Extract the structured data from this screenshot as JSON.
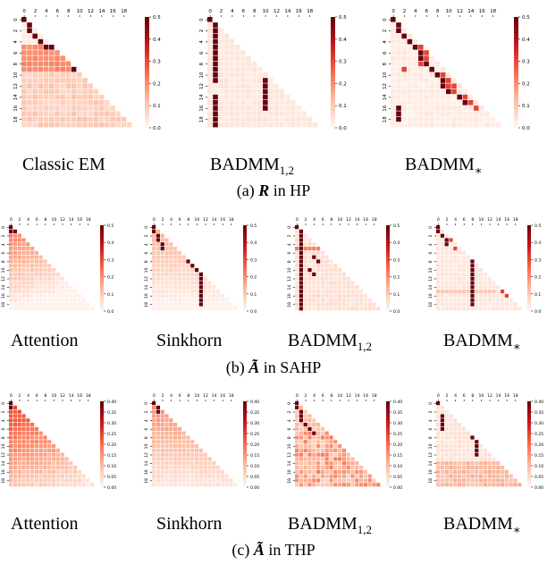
{
  "figure": {
    "groups": [
      {
        "caption_prefix": "(a)",
        "caption_symbol": "R",
        "caption_suffix": "in HP",
        "labels": [
          {
            "main": "Classic EM",
            "sub": ""
          },
          {
            "main": "BADMM",
            "sub": "1,2"
          },
          {
            "main": "BADMM",
            "sub": "*"
          }
        ]
      },
      {
        "caption_prefix": "(b)",
        "caption_symbol": "Ã",
        "caption_suffix": "in SAHP",
        "labels": [
          {
            "main": "Attention",
            "sub": ""
          },
          {
            "main": "Sinkhorn",
            "sub": ""
          },
          {
            "main": "BADMM",
            "sub": "1,2"
          },
          {
            "main": "BADMM",
            "sub": "*"
          }
        ]
      },
      {
        "caption_prefix": "(c)",
        "caption_symbol": "Ã",
        "caption_suffix": "in THP",
        "labels": [
          {
            "main": "Attention",
            "sub": ""
          },
          {
            "main": "Sinkhorn",
            "sub": ""
          },
          {
            "main": "BADMM",
            "sub": "1,2"
          },
          {
            "main": "BADMM",
            "sub": "*"
          }
        ]
      }
    ]
  },
  "chart_data": [
    {
      "type": "heatmap",
      "panel": "Classic EM",
      "group": "(a)",
      "size": 20,
      "x_ticks": [
        "0",
        "2",
        "4",
        "6",
        "8",
        "10",
        "12",
        "14",
        "16",
        "18"
      ],
      "y_ticks": [
        "0",
        "2",
        "4",
        "6",
        "8",
        "10",
        "12",
        "14",
        "16",
        "18"
      ],
      "colorbar": {
        "min": 0,
        "max": 0.5,
        "ticks": [
          "0.0",
          "0.1",
          "0.2",
          "0.3",
          "0.4",
          "0.5"
        ]
      },
      "colormap": [
        "#fff5f0",
        "#fcbba1",
        "#fb6a4a",
        "#cb181d",
        "#67000d"
      ],
      "pattern": "em",
      "strong": [
        [
          0,
          0
        ],
        [
          1,
          1
        ],
        [
          2,
          1
        ],
        [
          3,
          2
        ],
        [
          4,
          3
        ],
        [
          5,
          4
        ],
        [
          5,
          5
        ],
        [
          9,
          9
        ]
      ]
    },
    {
      "type": "heatmap",
      "panel": "BADMM 1,2",
      "group": "(a)",
      "size": 20,
      "x_ticks": [
        "0",
        "2",
        "4",
        "6",
        "8",
        "10",
        "12",
        "14",
        "16",
        "18"
      ],
      "y_ticks": [
        "0",
        "2",
        "4",
        "6",
        "8",
        "10",
        "12",
        "14",
        "16",
        "18"
      ],
      "colorbar": {
        "min": 0,
        "max": 0.5,
        "ticks": [
          "0.0",
          "0.1",
          "0.2",
          "0.3",
          "0.4",
          "0.5"
        ]
      },
      "colormap": [
        "#fff5f0",
        "#fcbba1",
        "#fb6a4a",
        "#cb181d",
        "#67000d"
      ],
      "pattern": "columns",
      "strong": [
        [
          0,
          0
        ],
        [
          1,
          1
        ],
        [
          2,
          1
        ],
        [
          3,
          1
        ],
        [
          4,
          1
        ],
        [
          5,
          1
        ],
        [
          6,
          1
        ],
        [
          7,
          1
        ],
        [
          8,
          1
        ],
        [
          9,
          1
        ],
        [
          10,
          1
        ],
        [
          11,
          1
        ],
        [
          12,
          1
        ],
        [
          13,
          1
        ],
        [
          14,
          1
        ],
        [
          15,
          1
        ],
        [
          16,
          1
        ],
        [
          17,
          1
        ],
        [
          18,
          1
        ],
        [
          19,
          1
        ],
        [
          11,
          10
        ],
        [
          12,
          10
        ],
        [
          13,
          10
        ],
        [
          14,
          10
        ],
        [
          15,
          10
        ],
        [
          16,
          10
        ]
      ],
      "gaps": [
        [
          12,
          1
        ],
        [
          13,
          1
        ]
      ]
    },
    {
      "type": "heatmap",
      "panel": "BADMM *",
      "group": "(a)",
      "size": 20,
      "x_ticks": [
        "0",
        "2",
        "4",
        "6",
        "8",
        "10",
        "12",
        "14",
        "16",
        "18"
      ],
      "y_ticks": [
        "0",
        "2",
        "4",
        "6",
        "8",
        "10",
        "12",
        "14",
        "16",
        "18"
      ],
      "colorbar": {
        "min": 0,
        "max": 0.5,
        "ticks": [
          "0.0",
          "0.1",
          "0.2",
          "0.3",
          "0.4",
          "0.5"
        ]
      },
      "colormap": [
        "#fff5f0",
        "#fcbba1",
        "#fb6a4a",
        "#cb181d",
        "#67000d"
      ],
      "pattern": "blocks",
      "strong": [
        [
          0,
          0
        ],
        [
          1,
          1
        ],
        [
          2,
          1
        ],
        [
          3,
          2
        ],
        [
          4,
          3
        ],
        [
          5,
          4
        ],
        [
          6,
          5
        ],
        [
          7,
          5
        ],
        [
          8,
          6
        ],
        [
          9,
          7
        ],
        [
          10,
          8
        ],
        [
          11,
          9
        ],
        [
          12,
          9
        ],
        [
          13,
          10
        ],
        [
          14,
          12
        ],
        [
          15,
          13
        ],
        [
          16,
          1
        ],
        [
          17,
          1
        ],
        [
          18,
          1
        ]
      ],
      "medium": [
        [
          5,
          5
        ],
        [
          6,
          6
        ],
        [
          7,
          6
        ],
        [
          8,
          5
        ],
        [
          9,
          2
        ],
        [
          10,
          9
        ],
        [
          11,
          10
        ],
        [
          12,
          10
        ],
        [
          12,
          11
        ],
        [
          13,
          11
        ],
        [
          14,
          13
        ],
        [
          15,
          14
        ],
        [
          16,
          15
        ]
      ]
    },
    {
      "type": "heatmap",
      "panel": "Attention",
      "group": "(b)",
      "size": 20,
      "x_ticks": [
        "0",
        "2",
        "4",
        "6",
        "8",
        "10",
        "12",
        "14",
        "16",
        "18"
      ],
      "y_ticks": [
        "0",
        "2",
        "4",
        "6",
        "8",
        "10",
        "12",
        "14",
        "16",
        "18"
      ],
      "colorbar": {
        "min": 0,
        "max": 0.5,
        "ticks": [
          "0.0",
          "0.1",
          "0.2",
          "0.3",
          "0.4",
          "0.5"
        ]
      },
      "colormap": [
        "#fff5f0",
        "#fcbba1",
        "#fb6a4a",
        "#cb181d",
        "#67000d"
      ],
      "pattern": "attention",
      "strong": [
        [
          0,
          0
        ],
        [
          1,
          0
        ],
        [
          1,
          1
        ]
      ]
    },
    {
      "type": "heatmap",
      "panel": "Sinkhorn",
      "group": "(b)",
      "size": 20,
      "x_ticks": [
        "0",
        "2",
        "4",
        "6",
        "8",
        "10",
        "12",
        "14",
        "16",
        "18"
      ],
      "y_ticks": [
        "0",
        "2",
        "4",
        "6",
        "8",
        "10",
        "12",
        "14",
        "16",
        "18"
      ],
      "colorbar": {
        "min": 0,
        "max": 0.5,
        "ticks": [
          "0.0",
          "0.1",
          "0.2",
          "0.3",
          "0.4",
          "0.5"
        ]
      },
      "colormap": [
        "#fff5f0",
        "#fcbba1",
        "#fb6a4a",
        "#cb181d",
        "#67000d"
      ],
      "pattern": "sinkhorn",
      "strong": [
        [
          0,
          0
        ],
        [
          1,
          0
        ],
        [
          2,
          1
        ],
        [
          3,
          1
        ],
        [
          4,
          2
        ],
        [
          5,
          2
        ],
        [
          8,
          8
        ],
        [
          9,
          9
        ],
        [
          10,
          10
        ],
        [
          11,
          11
        ],
        [
          12,
          11
        ],
        [
          13,
          11
        ],
        [
          14,
          11
        ],
        [
          15,
          11
        ],
        [
          16,
          11
        ],
        [
          17,
          11
        ],
        [
          18,
          11
        ]
      ]
    },
    {
      "type": "heatmap",
      "panel": "BADMM 1,2",
      "group": "(b)",
      "size": 20,
      "x_ticks": [
        "0",
        "2",
        "4",
        "6",
        "8",
        "10",
        "12",
        "14",
        "16",
        "18"
      ],
      "y_ticks": [
        "0",
        "2",
        "4",
        "6",
        "8",
        "10",
        "12",
        "14",
        "16",
        "18"
      ],
      "colorbar": {
        "min": 0,
        "max": 0.5,
        "ticks": [
          "0.0",
          "0.1",
          "0.2",
          "0.3",
          "0.4",
          "0.5"
        ]
      },
      "colormap": [
        "#fff5f0",
        "#fcbba1",
        "#fb6a4a",
        "#cb181d",
        "#67000d"
      ],
      "pattern": "badmm12b",
      "strong": [
        [
          0,
          0
        ],
        [
          1,
          1
        ],
        [
          2,
          1
        ],
        [
          3,
          1
        ],
        [
          4,
          1
        ],
        [
          5,
          1
        ],
        [
          6,
          1
        ],
        [
          7,
          1
        ],
        [
          8,
          1
        ],
        [
          9,
          1
        ],
        [
          10,
          1
        ],
        [
          11,
          1
        ],
        [
          12,
          1
        ],
        [
          13,
          1
        ],
        [
          14,
          1
        ],
        [
          15,
          1
        ],
        [
          16,
          1
        ],
        [
          17,
          1
        ],
        [
          18,
          1
        ],
        [
          19,
          1
        ],
        [
          7,
          4
        ],
        [
          8,
          5
        ],
        [
          10,
          3
        ],
        [
          11,
          4
        ]
      ]
    },
    {
      "type": "heatmap",
      "panel": "BADMM *",
      "group": "(b)",
      "size": 20,
      "x_ticks": [
        "0",
        "2",
        "4",
        "6",
        "8",
        "10",
        "12",
        "14",
        "16",
        "18"
      ],
      "y_ticks": [
        "0",
        "2",
        "4",
        "6",
        "8",
        "10",
        "12",
        "14",
        "16",
        "18"
      ],
      "colorbar": {
        "min": 0,
        "max": 0.5,
        "ticks": [
          "0.0",
          "0.1",
          "0.2",
          "0.3",
          "0.4",
          "0.5"
        ]
      },
      "colormap": [
        "#fff5f0",
        "#fcbba1",
        "#fb6a4a",
        "#cb181d",
        "#67000d"
      ],
      "pattern": "badmmsb",
      "strong": [
        [
          0,
          0
        ],
        [
          1,
          0
        ],
        [
          2,
          1
        ],
        [
          3,
          2
        ],
        [
          4,
          2
        ],
        [
          8,
          8
        ],
        [
          9,
          8
        ],
        [
          10,
          8
        ],
        [
          11,
          8
        ],
        [
          12,
          8
        ],
        [
          13,
          8
        ],
        [
          14,
          8
        ],
        [
          15,
          8
        ],
        [
          16,
          8
        ],
        [
          17,
          8
        ],
        [
          18,
          8
        ]
      ],
      "medium": [
        [
          3,
          3
        ],
        [
          3,
          4
        ],
        [
          5,
          4
        ],
        [
          15,
          15
        ],
        [
          16,
          16
        ]
      ]
    },
    {
      "type": "heatmap",
      "panel": "Attention",
      "group": "(c)",
      "size": 20,
      "x_ticks": [
        "0",
        "2",
        "4",
        "6",
        "8",
        "10",
        "12",
        "14",
        "16",
        "18"
      ],
      "y_ticks": [
        "0",
        "2",
        "4",
        "6",
        "8",
        "10",
        "12",
        "14",
        "16",
        "18"
      ],
      "colorbar": {
        "min": 0,
        "max": 0.4,
        "ticks": [
          "0.00",
          "0.05",
          "0.10",
          "0.15",
          "0.20",
          "0.25",
          "0.30",
          "0.35",
          "0.40"
        ]
      },
      "colormap": [
        "#fff5f0",
        "#fcbba1",
        "#fb6a4a",
        "#cb181d",
        "#67000d"
      ],
      "pattern": "attention_c",
      "strong": [
        [
          0,
          0
        ],
        [
          1,
          0
        ]
      ]
    },
    {
      "type": "heatmap",
      "panel": "Sinkhorn",
      "group": "(c)",
      "size": 20,
      "x_ticks": [
        "0",
        "2",
        "4",
        "6",
        "8",
        "10",
        "12",
        "14",
        "16",
        "18"
      ],
      "y_ticks": [
        "0",
        "2",
        "4",
        "6",
        "8",
        "10",
        "12",
        "14",
        "16",
        "18"
      ],
      "colorbar": {
        "min": 0,
        "max": 0.4,
        "ticks": [
          "0.00",
          "0.05",
          "0.10",
          "0.15",
          "0.20",
          "0.25",
          "0.30",
          "0.35",
          "0.40"
        ]
      },
      "colormap": [
        "#fff5f0",
        "#fcbba1",
        "#fb6a4a",
        "#cb181d",
        "#67000d"
      ],
      "pattern": "sinkhorn_c",
      "strong": [
        [
          0,
          0
        ],
        [
          1,
          1
        ],
        [
          2,
          1
        ]
      ]
    },
    {
      "type": "heatmap",
      "panel": "BADMM 1,2",
      "group": "(c)",
      "size": 20,
      "x_ticks": [
        "0",
        "2",
        "4",
        "6",
        "8",
        "10",
        "12",
        "14",
        "16",
        "18"
      ],
      "y_ticks": [
        "0",
        "2",
        "4",
        "6",
        "8",
        "10",
        "12",
        "14",
        "16",
        "18"
      ],
      "colorbar": {
        "min": 0,
        "max": 0.4,
        "ticks": [
          "0.00",
          "0.05",
          "0.10",
          "0.15",
          "0.20",
          "0.25",
          "0.30",
          "0.35",
          "0.40"
        ]
      },
      "colormap": [
        "#fff5f0",
        "#fcbba1",
        "#fb6a4a",
        "#cb181d",
        "#67000d"
      ],
      "pattern": "badmm12c",
      "strong": [
        [
          0,
          0
        ],
        [
          1,
          0
        ],
        [
          2,
          1
        ],
        [
          3,
          1
        ],
        [
          4,
          1
        ],
        [
          5,
          2
        ],
        [
          6,
          3
        ],
        [
          7,
          4
        ]
      ]
    },
    {
      "type": "heatmap",
      "panel": "BADMM *",
      "group": "(c)",
      "size": 20,
      "x_ticks": [
        "0",
        "2",
        "4",
        "6",
        "8",
        "10",
        "12",
        "14",
        "16",
        "18"
      ],
      "y_ticks": [
        "0",
        "2",
        "4",
        "6",
        "8",
        "10",
        "12",
        "14",
        "16",
        "18"
      ],
      "colorbar": {
        "min": 0,
        "max": 0.4,
        "ticks": [
          "0.00",
          "0.05",
          "0.10",
          "0.15",
          "0.20",
          "0.25",
          "0.30",
          "0.35",
          "0.40"
        ]
      },
      "colormap": [
        "#fff5f0",
        "#fcbba1",
        "#fb6a4a",
        "#cb181d",
        "#67000d"
      ],
      "pattern": "badmmsc",
      "strong": [
        [
          0,
          0
        ],
        [
          3,
          1
        ],
        [
          4,
          1
        ],
        [
          5,
          1
        ],
        [
          6,
          1
        ],
        [
          8,
          8
        ],
        [
          9,
          9
        ],
        [
          10,
          9
        ],
        [
          11,
          9
        ],
        [
          12,
          9
        ]
      ]
    }
  ]
}
